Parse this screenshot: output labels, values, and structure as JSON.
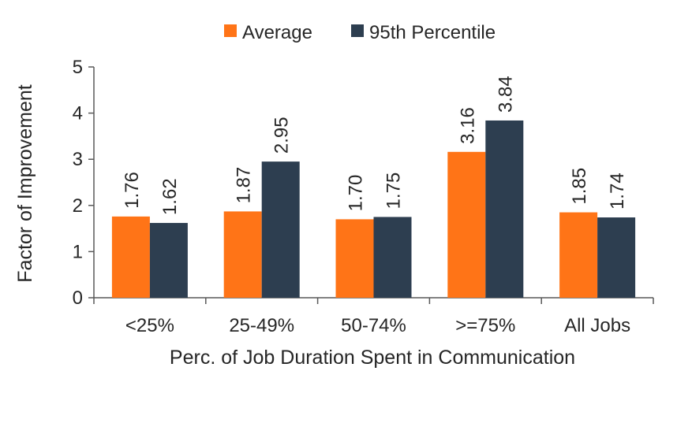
{
  "chart_data": {
    "type": "bar",
    "title": "",
    "xlabel": "Perc. of Job Duration Spent in Communication",
    "ylabel": "Factor of Improvement",
    "ylim": [
      0,
      5
    ],
    "yticks": [
      0,
      1,
      2,
      3,
      4,
      5
    ],
    "grid": false,
    "legend_position": "top",
    "categories": [
      "<25%",
      "25-49%",
      "50-74%",
      ">=75%",
      "All Jobs"
    ],
    "series": [
      {
        "name": "Average",
        "color": "#FF7417",
        "values": [
          1.76,
          1.87,
          1.7,
          3.16,
          1.85
        ],
        "labels": [
          "1.76",
          "1.87",
          "1.70",
          "3.16",
          "1.85"
        ]
      },
      {
        "name": "95th Percentile",
        "color": "#2D3E50",
        "values": [
          1.62,
          2.95,
          1.75,
          3.84,
          1.74
        ],
        "labels": [
          "1.62",
          "2.95",
          "1.75",
          "3.84",
          "1.74"
        ]
      }
    ]
  }
}
